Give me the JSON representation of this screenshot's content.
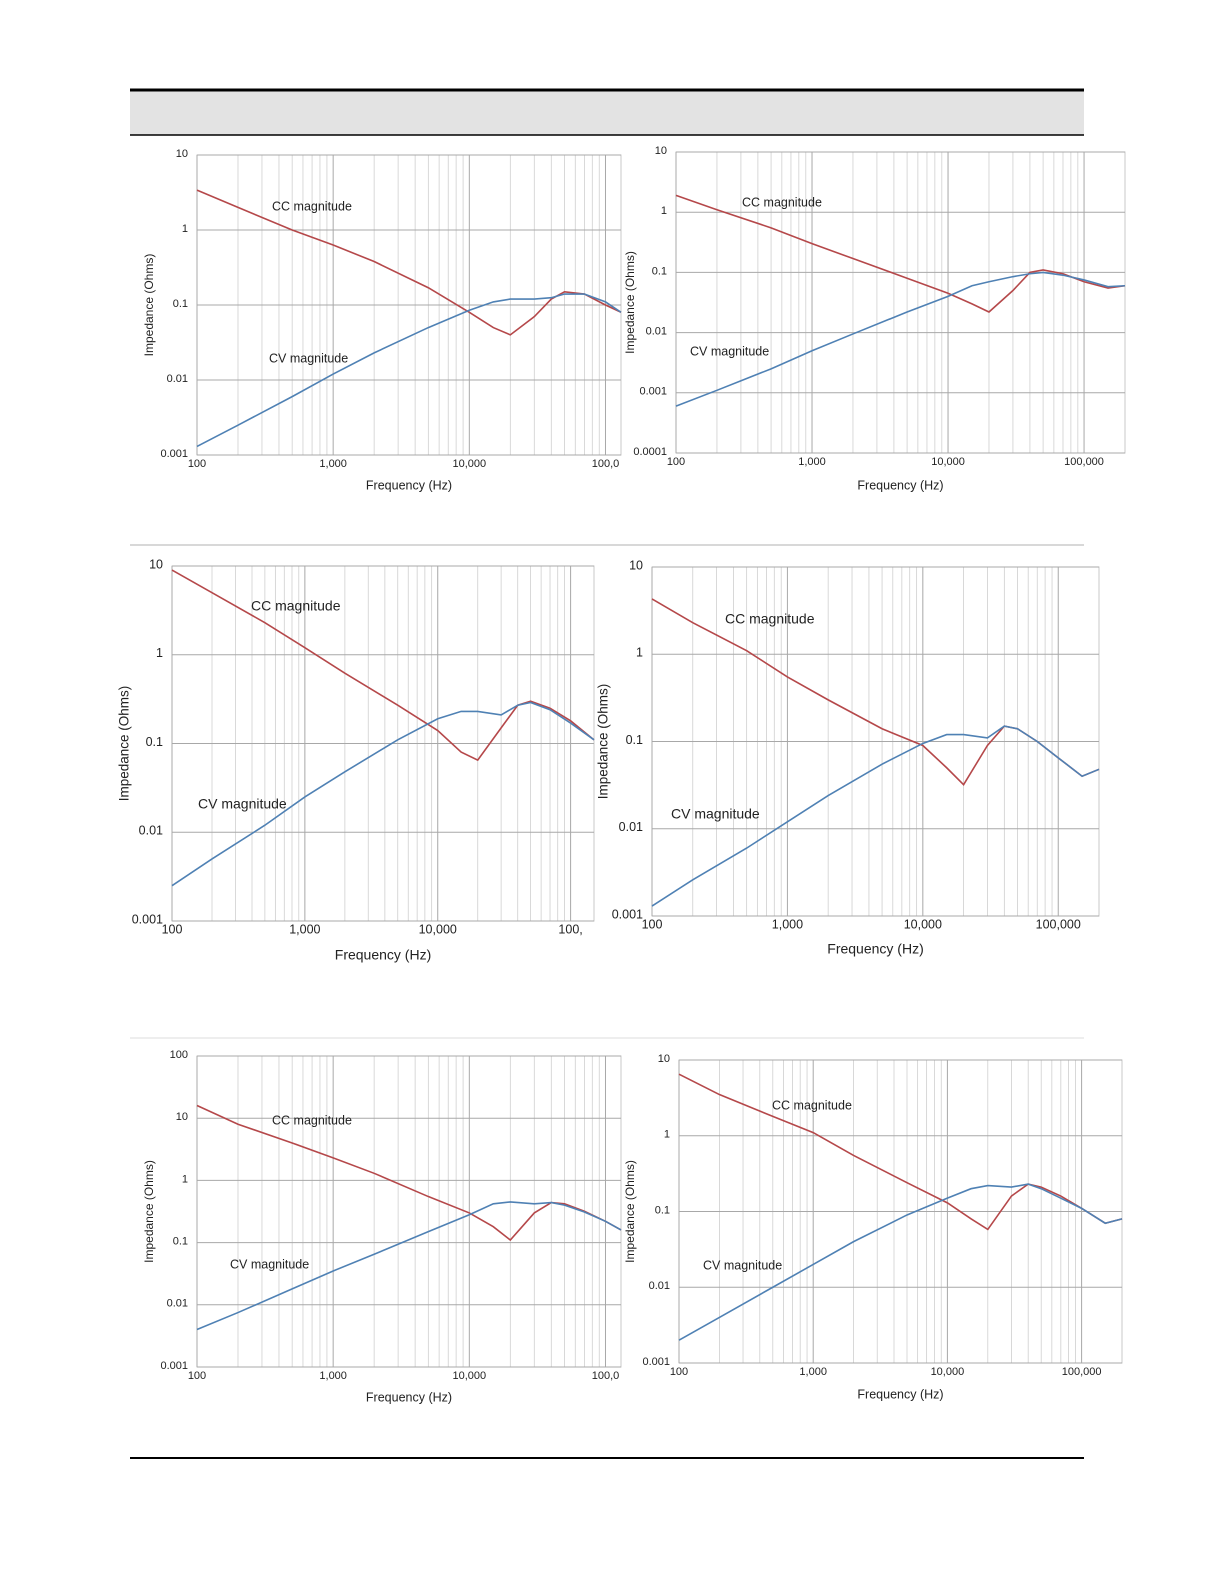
{
  "chart_data": [
    {
      "type": "line",
      "xlabel": "Frequency (Hz)",
      "ylabel": "Impedance (Ohms)",
      "log_x": true,
      "log_y": true,
      "grid": true,
      "minor_grid": true,
      "xlim": [
        100,
        130000
      ],
      "ylim": [
        0.001,
        10
      ],
      "xticks": [
        100,
        {
          "value": 1000,
          "label": "1,000"
        },
        {
          "value": 10000,
          "label": "10,000"
        },
        {
          "value": 100000,
          "label": "100,0"
        }
      ],
      "yticks": [
        10,
        1,
        0.1,
        0.01,
        0.001
      ],
      "x": [
        100,
        200,
        500,
        1000,
        2000,
        5000,
        10000,
        15000,
        20000,
        30000,
        40000,
        50000,
        70000,
        100000,
        130000
      ],
      "series": [
        {
          "name": "CC magnitude",
          "color": "#b5484a",
          "values": [
            3.4,
            2.0,
            1.0,
            0.63,
            0.38,
            0.17,
            0.08,
            0.05,
            0.04,
            0.07,
            0.12,
            0.15,
            0.14,
            0.1,
            0.08
          ]
        },
        {
          "name": "CV magnitude",
          "color": "#4f81b4",
          "values": [
            0.0013,
            0.0025,
            0.006,
            0.012,
            0.023,
            0.05,
            0.085,
            0.11,
            0.12,
            0.12,
            0.125,
            0.14,
            0.14,
            0.11,
            0.08
          ]
        }
      ]
    },
    {
      "type": "line",
      "xlabel": "Frequency (Hz)",
      "ylabel": "Impedance (Ohms)",
      "log_x": true,
      "log_y": true,
      "grid": true,
      "minor_grid": true,
      "xlim": [
        100,
        200000
      ],
      "ylim": [
        0.0001,
        10
      ],
      "xticks": [
        100,
        {
          "value": 1000,
          "label": "1,000"
        },
        {
          "value": 10000,
          "label": "10,000"
        },
        {
          "value": 100000,
          "label": "100,000"
        }
      ],
      "yticks": [
        10,
        1,
        0.1,
        0.01,
        0.001,
        0.0001
      ],
      "x": [
        100,
        200,
        500,
        1000,
        2000,
        5000,
        10000,
        15000,
        20000,
        30000,
        40000,
        50000,
        70000,
        100000,
        150000,
        200000
      ],
      "series": [
        {
          "name": "CC magnitude",
          "color": "#b5484a",
          "values": [
            1.9,
            1.1,
            0.55,
            0.3,
            0.17,
            0.08,
            0.045,
            0.03,
            0.022,
            0.05,
            0.1,
            0.11,
            0.095,
            0.07,
            0.055,
            0.06
          ]
        },
        {
          "name": "CV magnitude",
          "color": "#4f81b4",
          "values": [
            0.0006,
            0.0011,
            0.0025,
            0.005,
            0.0095,
            0.022,
            0.04,
            0.06,
            0.07,
            0.085,
            0.095,
            0.1,
            0.09,
            0.075,
            0.058,
            0.06
          ]
        }
      ]
    },
    {
      "type": "line",
      "xlabel": "Frequency (Hz)",
      "ylabel": "Impedance (Ohms)",
      "log_x": true,
      "log_y": true,
      "grid": true,
      "minor_grid": true,
      "xlim": [
        100,
        150000
      ],
      "ylim": [
        0.001,
        10
      ],
      "xticks": [
        100,
        {
          "value": 1000,
          "label": "1,000"
        },
        {
          "value": 10000,
          "label": "10,000"
        },
        {
          "value": 100000,
          "label": "100,"
        }
      ],
      "yticks": [
        10,
        1,
        0.1,
        0.01,
        0.001
      ],
      "x": [
        100,
        200,
        500,
        1000,
        2000,
        5000,
        10000,
        15000,
        20000,
        30000,
        40000,
        50000,
        70000,
        100000,
        150000
      ],
      "series": [
        {
          "name": "CC magnitude",
          "color": "#b5484a",
          "values": [
            9,
            5,
            2.3,
            1.2,
            0.62,
            0.27,
            0.14,
            0.08,
            0.065,
            0.15,
            0.27,
            0.3,
            0.25,
            0.18,
            0.11
          ]
        },
        {
          "name": "CV magnitude",
          "color": "#4f81b4",
          "values": [
            0.0025,
            0.005,
            0.012,
            0.025,
            0.048,
            0.11,
            0.19,
            0.23,
            0.23,
            0.21,
            0.27,
            0.29,
            0.24,
            0.17,
            0.11
          ]
        }
      ]
    },
    {
      "type": "line",
      "xlabel": "Frequency (Hz)",
      "ylabel": "Impedance (Ohms)",
      "log_x": true,
      "log_y": true,
      "grid": true,
      "minor_grid": true,
      "xlim": [
        100,
        200000
      ],
      "ylim": [
        0.001,
        10
      ],
      "xticks": [
        100,
        {
          "value": 1000,
          "label": "1,000"
        },
        {
          "value": 10000,
          "label": "10,000"
        },
        {
          "value": 100000,
          "label": "100,000"
        }
      ],
      "yticks": [
        10,
        1,
        0.1,
        0.01,
        0.001
      ],
      "x": [
        100,
        200,
        500,
        1000,
        2000,
        5000,
        10000,
        15000,
        20000,
        30000,
        40000,
        50000,
        70000,
        100000,
        150000,
        200000
      ],
      "series": [
        {
          "name": "CC magnitude",
          "color": "#b5484a",
          "values": [
            4.3,
            2.3,
            1.1,
            0.55,
            0.3,
            0.14,
            0.09,
            0.05,
            0.032,
            0.09,
            0.15,
            0.14,
            0.1,
            0.065,
            0.04,
            0.048
          ]
        },
        {
          "name": "CV magnitude",
          "color": "#4f81b4",
          "values": [
            0.0013,
            0.0026,
            0.006,
            0.012,
            0.024,
            0.055,
            0.095,
            0.12,
            0.12,
            0.11,
            0.15,
            0.14,
            0.1,
            0.065,
            0.04,
            0.048
          ]
        }
      ]
    },
    {
      "type": "line",
      "xlabel": "Frequency (Hz)",
      "ylabel": "Impedance (Ohms)",
      "log_x": true,
      "log_y": true,
      "grid": true,
      "minor_grid": true,
      "xlim": [
        100,
        130000
      ],
      "ylim": [
        0.001,
        100
      ],
      "xticks": [
        100,
        {
          "value": 1000,
          "label": "1,000"
        },
        {
          "value": 10000,
          "label": "10,000"
        },
        {
          "value": 100000,
          "label": "100,0"
        }
      ],
      "yticks": [
        100,
        10,
        1,
        0.1,
        0.01,
        0.001
      ],
      "x": [
        100,
        200,
        500,
        1000,
        2000,
        5000,
        10000,
        15000,
        20000,
        30000,
        40000,
        50000,
        70000,
        100000,
        130000
      ],
      "series": [
        {
          "name": "CC magnitude",
          "color": "#b5484a",
          "values": [
            16,
            8,
            4,
            2.3,
            1.3,
            0.55,
            0.3,
            0.18,
            0.11,
            0.3,
            0.44,
            0.42,
            0.32,
            0.22,
            0.16
          ]
        },
        {
          "name": "CV magnitude",
          "color": "#4f81b4",
          "values": [
            0.004,
            0.0075,
            0.018,
            0.035,
            0.065,
            0.15,
            0.28,
            0.42,
            0.45,
            0.42,
            0.44,
            0.4,
            0.31,
            0.22,
            0.16
          ]
        }
      ]
    },
    {
      "type": "line",
      "xlabel": "Frequency (Hz)",
      "ylabel": "Impedance (Ohms)",
      "log_x": true,
      "log_y": true,
      "grid": true,
      "minor_grid": true,
      "xlim": [
        100,
        200000
      ],
      "ylim": [
        0.001,
        10
      ],
      "xticks": [
        100,
        {
          "value": 1000,
          "label": "1,000"
        },
        {
          "value": 10000,
          "label": "10,000"
        },
        {
          "value": 100000,
          "label": "100,000"
        }
      ],
      "yticks": [
        10,
        1,
        0.1,
        0.01,
        0.001
      ],
      "x": [
        100,
        200,
        500,
        1000,
        2000,
        5000,
        10000,
        15000,
        20000,
        30000,
        40000,
        50000,
        70000,
        100000,
        150000,
        200000
      ],
      "series": [
        {
          "name": "CC magnitude",
          "color": "#b5484a",
          "values": [
            6.5,
            3.5,
            1.8,
            1.1,
            0.55,
            0.24,
            0.13,
            0.08,
            0.058,
            0.16,
            0.23,
            0.21,
            0.16,
            0.11,
            0.07,
            0.08
          ]
        },
        {
          "name": "CV magnitude",
          "color": "#4f81b4",
          "values": [
            0.002,
            0.004,
            0.01,
            0.02,
            0.04,
            0.09,
            0.15,
            0.2,
            0.22,
            0.21,
            0.23,
            0.2,
            0.15,
            0.11,
            0.07,
            0.08
          ]
        }
      ]
    }
  ]
}
